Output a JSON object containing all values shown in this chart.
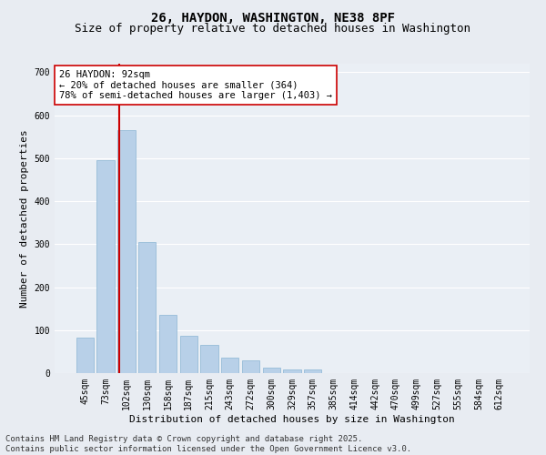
{
  "title": "26, HAYDON, WASHINGTON, NE38 8PF",
  "subtitle": "Size of property relative to detached houses in Washington",
  "xlabel": "Distribution of detached houses by size in Washington",
  "ylabel": "Number of detached properties",
  "categories": [
    "45sqm",
    "73sqm",
    "102sqm",
    "130sqm",
    "158sqm",
    "187sqm",
    "215sqm",
    "243sqm",
    "272sqm",
    "300sqm",
    "329sqm",
    "357sqm",
    "385sqm",
    "414sqm",
    "442sqm",
    "470sqm",
    "499sqm",
    "527sqm",
    "555sqm",
    "584sqm",
    "612sqm"
  ],
  "values": [
    83,
    495,
    565,
    305,
    135,
    87,
    65,
    37,
    30,
    12,
    8,
    8,
    0,
    0,
    0,
    0,
    0,
    0,
    0,
    0,
    0
  ],
  "bar_color": "#b8d0e8",
  "bar_edge_color": "#8ab4d4",
  "bar_width": 0.85,
  "vline_color": "#cc0000",
  "annotation_text": "26 HAYDON: 92sqm\n← 20% of detached houses are smaller (364)\n78% of semi-detached houses are larger (1,403) →",
  "annotation_box_color": "#ffffff",
  "annotation_box_edge": "#cc0000",
  "ylim": [
    0,
    720
  ],
  "yticks": [
    0,
    100,
    200,
    300,
    400,
    500,
    600,
    700
  ],
  "bg_color": "#e8ecf2",
  "plot_bg_color": "#eaeff5",
  "footer_line1": "Contains HM Land Registry data © Crown copyright and database right 2025.",
  "footer_line2": "Contains public sector information licensed under the Open Government Licence v3.0.",
  "title_fontsize": 10,
  "subtitle_fontsize": 9,
  "tick_fontsize": 7,
  "ylabel_fontsize": 8,
  "xlabel_fontsize": 8,
  "annotation_fontsize": 7.5,
  "footer_fontsize": 6.5
}
